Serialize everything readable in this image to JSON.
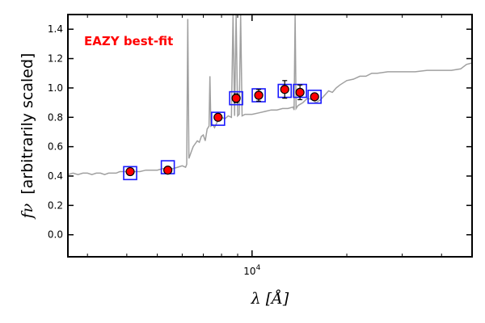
{
  "chart_data": {
    "type": "scatter",
    "xlabel": "λ [Å]",
    "ylabel_symbol": "fν",
    "ylabel_rest": "[arbitrarily scaled]",
    "annotation": "EAZY best-fit",
    "x_scale": "log",
    "xlim": [
      2600,
      50000
    ],
    "ylim": [
      -0.15,
      1.5
    ],
    "x_tick_labels": [
      {
        "value": 10000,
        "base": "10",
        "exp": "4"
      }
    ],
    "y_ticks": [
      0.0,
      0.2,
      0.4,
      0.6,
      0.8,
      1.0,
      1.2,
      1.4
    ],
    "y_tick_labels": [
      "0.0",
      "0.2",
      "0.4",
      "0.6",
      "0.8",
      "1.0",
      "1.2",
      "1.4"
    ],
    "grid": false,
    "colors": {
      "model": "#a0a0a0",
      "model_flux": "#1a1aff",
      "observed": "#ff0000",
      "annotation": "#ff0000"
    },
    "series": [
      {
        "role": "model-spectrum",
        "points": [
          [
            2600,
            0.41
          ],
          [
            2700,
            0.42
          ],
          [
            2800,
            0.41
          ],
          [
            2900,
            0.42
          ],
          [
            3000,
            0.42
          ],
          [
            3100,
            0.41
          ],
          [
            3200,
            0.42
          ],
          [
            3300,
            0.42
          ],
          [
            3400,
            0.41
          ],
          [
            3500,
            0.42
          ],
          [
            3600,
            0.42
          ],
          [
            3700,
            0.42
          ],
          [
            3800,
            0.43
          ],
          [
            3900,
            0.43
          ],
          [
            4000,
            0.43
          ],
          [
            4200,
            0.43
          ],
          [
            4400,
            0.43
          ],
          [
            4600,
            0.44
          ],
          [
            4800,
            0.44
          ],
          [
            5000,
            0.44
          ],
          [
            5200,
            0.45
          ],
          [
            5400,
            0.45
          ],
          [
            5600,
            0.45
          ],
          [
            5800,
            0.46
          ],
          [
            6000,
            0.47
          ],
          [
            6150,
            0.46
          ],
          [
            6200,
            0.48
          ],
          [
            6250,
            1.47
          ],
          [
            6300,
            0.52
          ],
          [
            6400,
            0.56
          ],
          [
            6500,
            0.6
          ],
          [
            6600,
            0.62
          ],
          [
            6700,
            0.64
          ],
          [
            6800,
            0.63
          ],
          [
            6900,
            0.67
          ],
          [
            7000,
            0.68
          ],
          [
            7100,
            0.64
          ],
          [
            7200,
            0.72
          ],
          [
            7300,
            0.74
          ],
          [
            7350,
            1.08
          ],
          [
            7400,
            0.74
          ],
          [
            7500,
            0.75
          ],
          [
            7600,
            0.73
          ],
          [
            7800,
            0.78
          ],
          [
            8000,
            0.8
          ],
          [
            8200,
            0.79
          ],
          [
            8400,
            0.81
          ],
          [
            8600,
            0.8
          ],
          [
            8700,
            1.5
          ],
          [
            8800,
            0.81
          ],
          [
            8900,
            1.5
          ],
          [
            9000,
            0.81
          ],
          [
            9100,
            0.82
          ],
          [
            9200,
            1.5
          ],
          [
            9300,
            0.81
          ],
          [
            9500,
            0.82
          ],
          [
            9800,
            0.82
          ],
          [
            10000,
            0.82
          ],
          [
            10500,
            0.83
          ],
          [
            11000,
            0.84
          ],
          [
            11500,
            0.85
          ],
          [
            12000,
            0.85
          ],
          [
            12500,
            0.86
          ],
          [
            13000,
            0.86
          ],
          [
            13500,
            0.87
          ],
          [
            13600,
            0.85
          ],
          [
            13700,
            1.5
          ],
          [
            13800,
            0.86
          ],
          [
            14000,
            0.88
          ],
          [
            14500,
            0.9
          ],
          [
            15000,
            0.93
          ],
          [
            15500,
            0.92
          ],
          [
            16000,
            0.9
          ],
          [
            16500,
            0.92
          ],
          [
            17000,
            0.95
          ],
          [
            17500,
            0.98
          ],
          [
            18000,
            0.97
          ],
          [
            18500,
            1.0
          ],
          [
            19000,
            1.02
          ],
          [
            20000,
            1.05
          ],
          [
            21000,
            1.06
          ],
          [
            22000,
            1.08
          ],
          [
            23000,
            1.08
          ],
          [
            24000,
            1.1
          ],
          [
            25000,
            1.1
          ],
          [
            27000,
            1.11
          ],
          [
            30000,
            1.11
          ],
          [
            33000,
            1.11
          ],
          [
            36000,
            1.12
          ],
          [
            40000,
            1.12
          ],
          [
            43000,
            1.12
          ],
          [
            46000,
            1.13
          ],
          [
            48000,
            1.16
          ],
          [
            50000,
            1.17
          ]
        ]
      },
      {
        "role": "model-band-flux",
        "points": [
          [
            4100,
            0.42
          ],
          [
            5400,
            0.46
          ],
          [
            7800,
            0.79
          ],
          [
            8900,
            0.93
          ],
          [
            10500,
            0.95
          ],
          [
            12700,
            0.98
          ],
          [
            14200,
            0.98
          ],
          [
            15800,
            0.94
          ]
        ]
      },
      {
        "role": "observed-photometry",
        "points": [
          [
            4100,
            0.43,
            0.02
          ],
          [
            5400,
            0.44,
            0.02
          ],
          [
            7800,
            0.8,
            0.02
          ],
          [
            8900,
            0.93,
            0.03
          ],
          [
            10500,
            0.95,
            0.04
          ],
          [
            12700,
            0.99,
            0.06
          ],
          [
            14200,
            0.97,
            0.05
          ],
          [
            15800,
            0.94,
            0.02
          ]
        ]
      }
    ]
  }
}
